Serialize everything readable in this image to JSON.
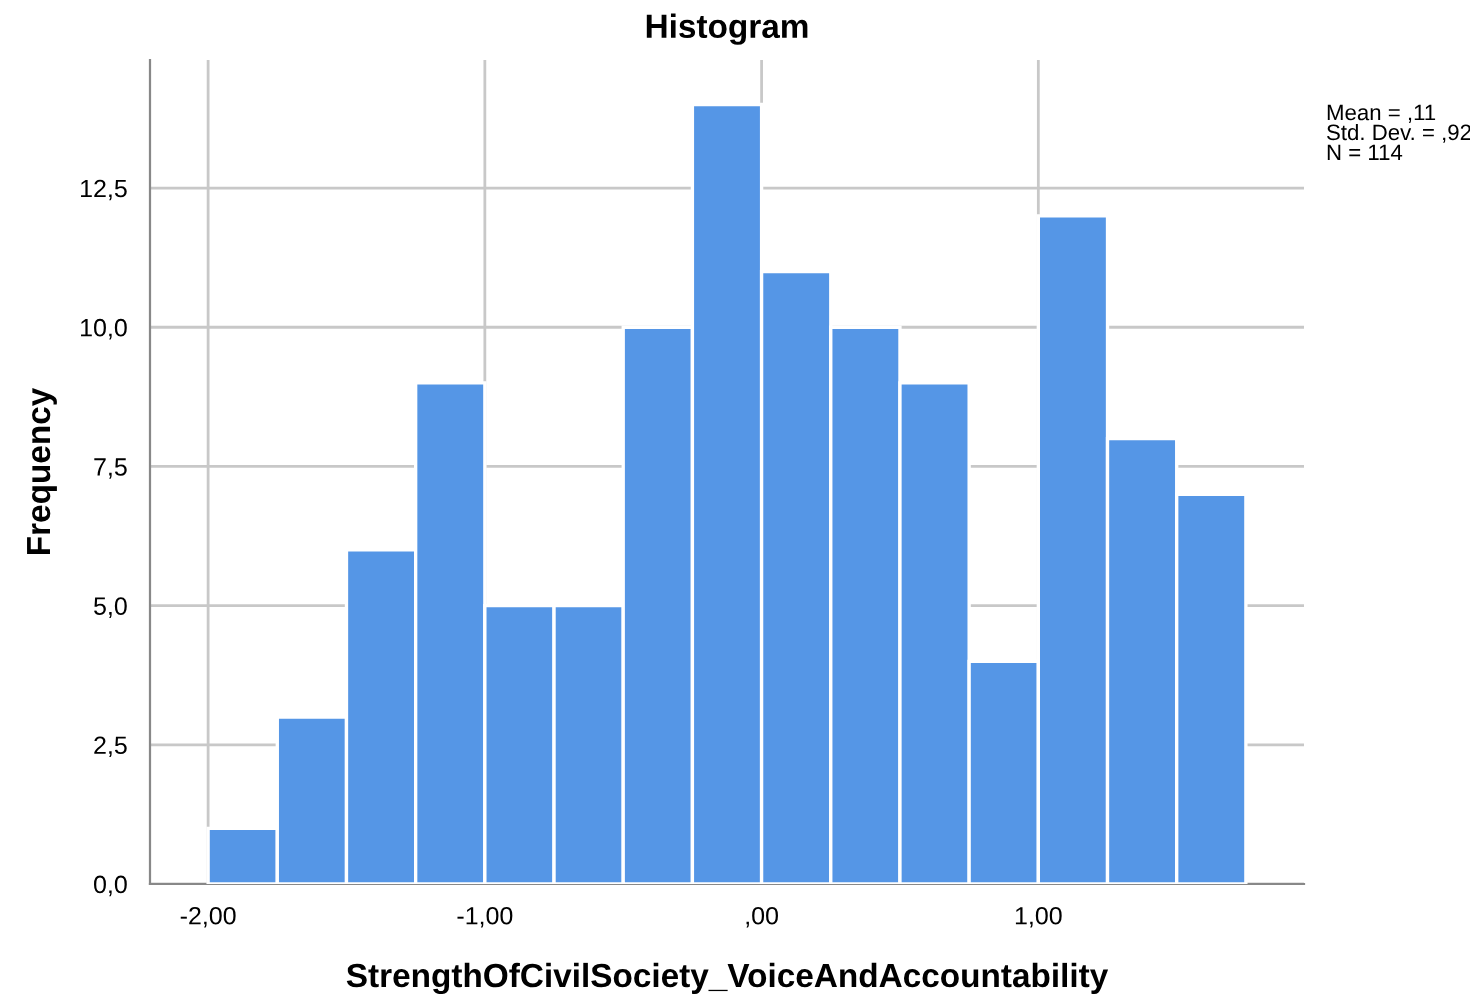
{
  "chart_data": {
    "type": "histogram",
    "title": "Histogram",
    "xlabel": "StrengthOfCivilSociety_VoiceAndAccountability",
    "ylabel": "Frequency",
    "bins": [
      -2.0,
      -1.75,
      -1.5,
      -1.25,
      -1.0,
      -0.75,
      -0.5,
      -0.25,
      0.0,
      0.25,
      0.5,
      0.75,
      1.0,
      1.25,
      1.5,
      1.75
    ],
    "values": [
      1,
      3,
      6,
      9,
      5,
      5,
      10,
      14,
      11,
      10,
      9,
      4,
      12,
      8,
      7
    ],
    "color": "#5596e6",
    "xlim": [
      -2.21,
      1.96
    ],
    "xticks": [
      {
        "value": -2,
        "label": "-2,00"
      },
      {
        "value": -1,
        "label": "-1,00"
      },
      {
        "value": 0,
        "label": ",00"
      },
      {
        "value": 1,
        "label": "1,00"
      }
    ],
    "ylim": [
      0,
      14.8
    ],
    "yticks": [
      {
        "value": 0,
        "label": "0,0"
      },
      {
        "value": 2.5,
        "label": "2,5"
      },
      {
        "value": 5,
        "label": "5,0"
      },
      {
        "value": 7.5,
        "label": "7,5"
      },
      {
        "value": 10,
        "label": "10,0"
      },
      {
        "value": 12.5,
        "label": "12,5"
      }
    ],
    "grid": true,
    "annotations": [
      "Mean = ,11\nStd. Dev. = ,92\nN = 114"
    ]
  }
}
